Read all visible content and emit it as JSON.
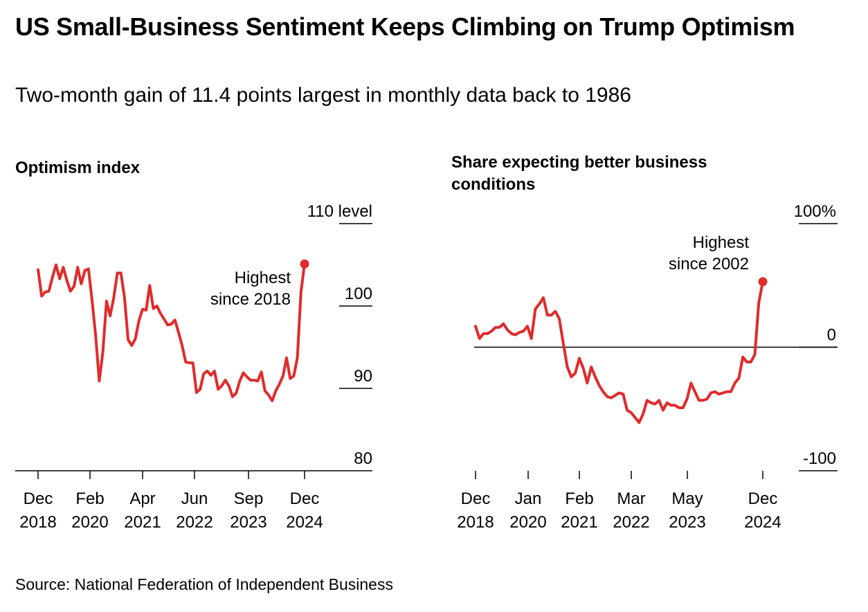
{
  "header": {
    "title": "US Small-Business Sentiment Keeps Climbing on Trump Optimism",
    "subtitle": "Two-month gain of 11.4 points largest in monthly data back to 1986"
  },
  "footer": {
    "source": "Source: National Federation of Independent Business"
  },
  "colors": {
    "line": "#e02b2b",
    "text": "#000000",
    "axis": "#000000"
  },
  "chart_data": [
    {
      "type": "line",
      "title": "Optimism index",
      "ylabel": "",
      "y_unit_label": "level",
      "ylim": [
        80,
        110
      ],
      "y_ticks": [
        {
          "value": 110,
          "label": "110 level"
        },
        {
          "value": 100,
          "label": "100"
        },
        {
          "value": 90,
          "label": "90"
        },
        {
          "value": 80,
          "label": "80"
        }
      ],
      "x_ticks": [
        {
          "label_top": "Dec",
          "label_bottom": "2018"
        },
        {
          "label_top": "Feb",
          "label_bottom": "2020"
        },
        {
          "label_top": "Apr",
          "label_bottom": "2021"
        },
        {
          "label_top": "Jun",
          "label_bottom": "2022"
        },
        {
          "label_top": "Sep",
          "label_bottom": "2023"
        },
        {
          "label_top": "Dec",
          "label_bottom": "2024"
        }
      ],
      "annotation": {
        "lines": [
          "Highest",
          "since 2018"
        ]
      },
      "series": [
        {
          "values": [
            104.4,
            101.2,
            101.7,
            101.8,
            103.5,
            105.0,
            103.3,
            104.7,
            103.1,
            101.8,
            102.4,
            104.7,
            102.7,
            104.3,
            104.5,
            100.7,
            96.4,
            90.9,
            94.4,
            100.6,
            98.8,
            101.0,
            104.0,
            104.0,
            101.0,
            95.9,
            95.2,
            96.0,
            98.2,
            99.6,
            99.5,
            102.5,
            99.7,
            100.0,
            99.1,
            98.4,
            97.7,
            97.8,
            98.3,
            96.8,
            95.2,
            93.2,
            93.1,
            93.1,
            89.5,
            89.9,
            91.8,
            92.1,
            91.6,
            92.1,
            89.9,
            90.3,
            91.0,
            90.3,
            89.0,
            89.4,
            90.9,
            91.9,
            91.4,
            91.0,
            91.0,
            90.9,
            92.0,
            89.7,
            89.2,
            88.5,
            89.7,
            90.5,
            91.5,
            93.7,
            91.2,
            91.5,
            93.7,
            101.7,
            105.1
          ]
        }
      ]
    },
    {
      "type": "line",
      "title": "Share expecting better business conditions",
      "ylabel": "",
      "y_unit_label": "%",
      "ylim": [
        -100,
        100
      ],
      "y_ticks": [
        {
          "value": 100,
          "label": "100%"
        },
        {
          "value": 0,
          "label": "0"
        },
        {
          "value": -100,
          "label": "-100"
        }
      ],
      "zero_line": true,
      "x_ticks": [
        {
          "label_top": "Dec",
          "label_bottom": "2018"
        },
        {
          "label_top": "Jan",
          "label_bottom": "2020"
        },
        {
          "label_top": "Feb",
          "label_bottom": "2021"
        },
        {
          "label_top": "Mar",
          "label_bottom": "2022"
        },
        {
          "label_top": "May",
          "label_bottom": "2023"
        },
        {
          "label_top": "Dec",
          "label_bottom": "2024"
        }
      ],
      "annotation": {
        "lines": [
          "Highest",
          "since 2002"
        ]
      },
      "series": [
        {
          "values": [
            17,
            7,
            11,
            11,
            13,
            16,
            16,
            19,
            14,
            11,
            10,
            12,
            13,
            17,
            7,
            31,
            35,
            40,
            26,
            26,
            29,
            23,
            3,
            -16,
            -24,
            -21,
            -9,
            -17,
            -29,
            -16,
            -24,
            -31,
            -36,
            -40,
            -41,
            -39,
            -37,
            -38,
            -51,
            -53,
            -57,
            -61,
            -54,
            -43,
            -45,
            -46,
            -43,
            -51,
            -45,
            -47,
            -47,
            -49,
            -49,
            -42,
            -29,
            -36,
            -43,
            -43,
            -42,
            -37,
            -36,
            -38,
            -37,
            -36,
            -36,
            -29,
            -25,
            -8,
            -12,
            -12,
            -6,
            36,
            53
          ]
        }
      ]
    }
  ]
}
